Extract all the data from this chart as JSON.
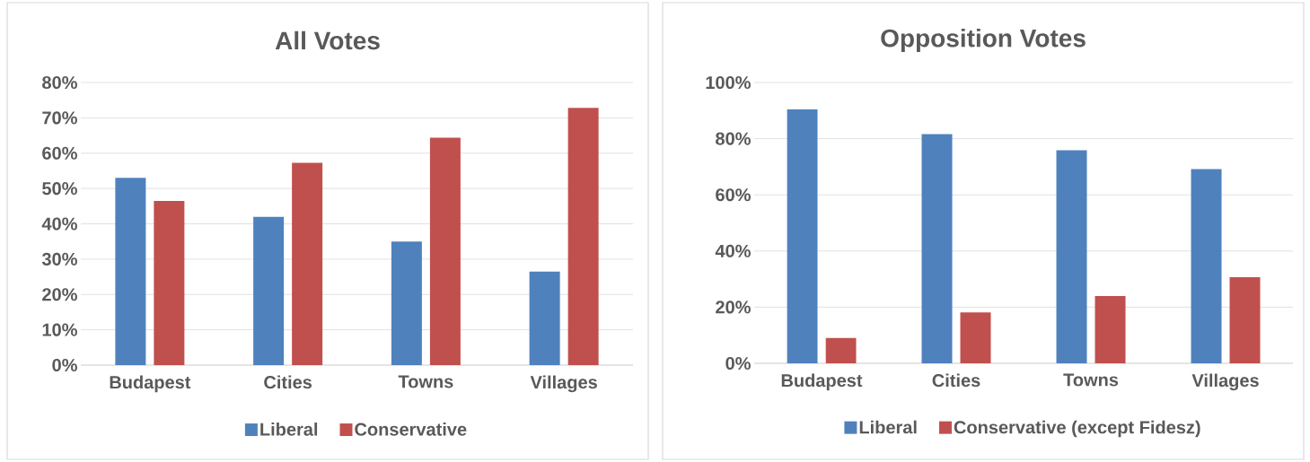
{
  "chart_data": [
    {
      "type": "bar",
      "title": "All Votes",
      "categories": [
        "Budapest",
        "Cities",
        "Towns",
        "Villages"
      ],
      "series": [
        {
          "name": "Liberal",
          "color": "#4f81bd",
          "values": [
            53,
            42,
            35,
            26.5
          ]
        },
        {
          "name": "Conservative",
          "color": "#c0504d",
          "values": [
            46.5,
            57.3,
            64.4,
            72.8
          ]
        }
      ],
      "ylim": [
        0,
        80
      ],
      "yticks": [
        {
          "value": 0,
          "label": "0%"
        },
        {
          "value": 10,
          "label": "10%"
        },
        {
          "value": 20,
          "label": "20%"
        },
        {
          "value": 30,
          "label": "30%"
        },
        {
          "value": 40,
          "label": "40%"
        },
        {
          "value": 50,
          "label": "50%"
        },
        {
          "value": 60,
          "label": "60%"
        },
        {
          "value": 70,
          "label": "70%"
        },
        {
          "value": 80,
          "label": "80%"
        }
      ],
      "grid": "y",
      "legend": "bottom"
    },
    {
      "type": "bar",
      "title": "Opposition Votes",
      "categories": [
        "Budapest",
        "Cities",
        "Towns",
        "Villages"
      ],
      "series": [
        {
          "name": "Liberal",
          "color": "#4f81bd",
          "values": [
            90.5,
            81.6,
            75.9,
            69.2
          ]
        },
        {
          "name": "Conservative (except Fidesz)",
          "color": "#c0504d",
          "values": [
            9,
            18.1,
            24,
            30.7
          ]
        }
      ],
      "ylim": [
        0,
        100
      ],
      "yticks": [
        {
          "value": 0,
          "label": "0%"
        },
        {
          "value": 20,
          "label": "20%"
        },
        {
          "value": 40,
          "label": "40%"
        },
        {
          "value": 60,
          "label": "60%"
        },
        {
          "value": 80,
          "label": "80%"
        },
        {
          "value": 100,
          "label": "100%"
        }
      ],
      "grid": "y",
      "legend": "bottom"
    }
  ]
}
